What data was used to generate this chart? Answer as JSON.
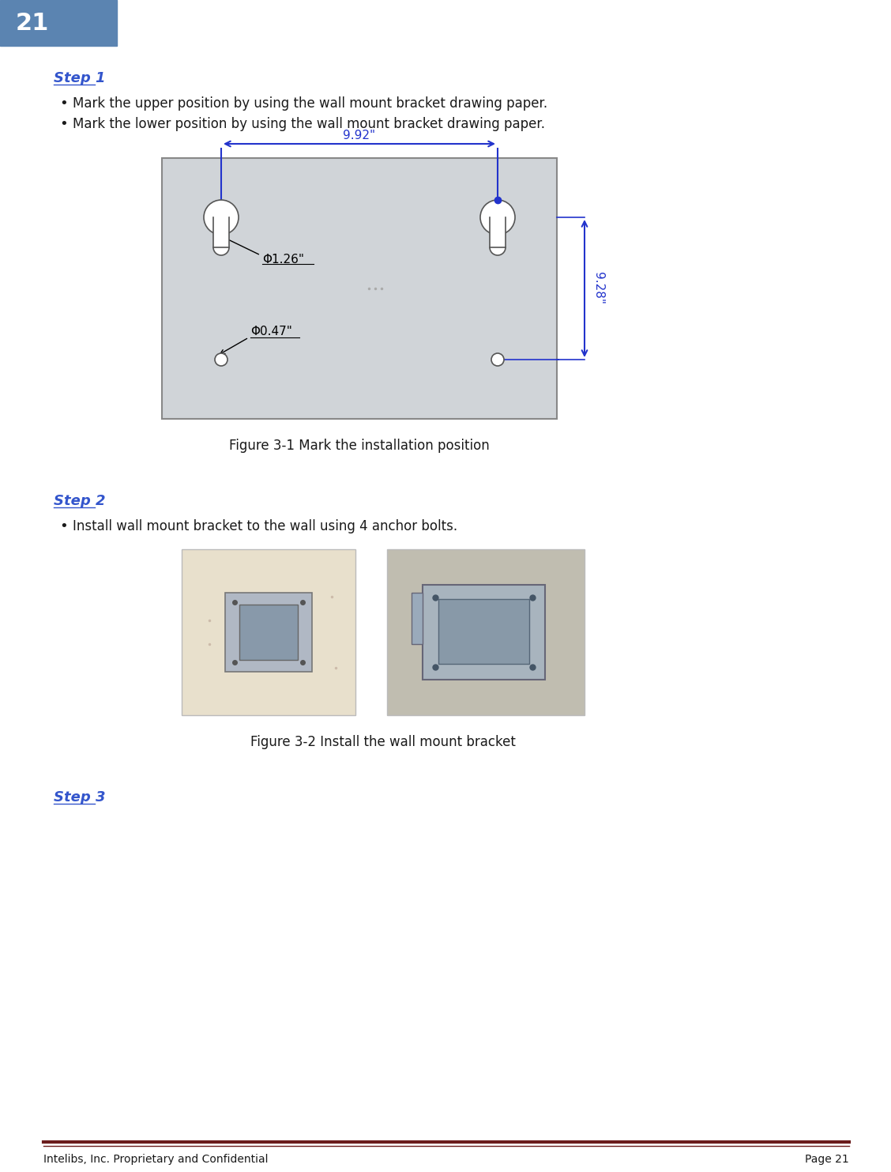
{
  "page_number": "21",
  "header_bg": "#5b84b1",
  "header_text_color": "#ffffff",
  "step1_label": "Step 1",
  "step1_bullet1": "Mark the upper position by using the wall mount bracket drawing paper.",
  "step1_bullet2": "Mark the lower position by using the wall mount bracket drawing paper.",
  "fig1_caption": "Figure 3-1 Mark the installation position",
  "step2_label": "Step 2",
  "step2_bullet1": "Install wall mount bracket to the wall using 4 anchor bolts.",
  "fig2_caption": "Figure 3-2 Install the wall mount bracket",
  "step3_label": "Step 3",
  "footer_text_left": "Intelibs, Inc. Proprietary and Confidential",
  "footer_text_right": "Page 21",
  "footer_line_color": "#6b1c1c",
  "blue_color": "#2233cc",
  "dark_text": "#1a1a1a",
  "bracket_diagram_bg": "#d0d4d8",
  "link_color": "#3355cc",
  "photo_left_bg": "#e8e0cc",
  "photo_right_bg": "#c0bdb0"
}
